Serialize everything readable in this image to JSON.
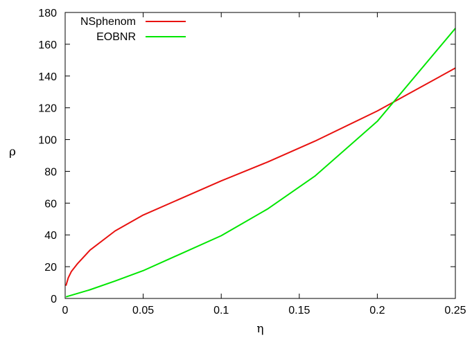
{
  "chart_data": {
    "type": "line",
    "xlabel": "η",
    "ylabel": "ρ",
    "xlim": [
      0,
      0.25
    ],
    "ylim": [
      0,
      180
    ],
    "xticks": [
      "0",
      "0.05",
      "0.1",
      "0.15",
      "0.2",
      "0.25"
    ],
    "yticks": [
      "0",
      "20",
      "40",
      "60",
      "80",
      "100",
      "120",
      "140",
      "160",
      "180"
    ],
    "grid": false,
    "legend_position": "top-left",
    "series": [
      {
        "name": "NSphenom",
        "color": "#e8110f",
        "x": [
          0.0005,
          0.002,
          0.004,
          0.008,
          0.016,
          0.032,
          0.05,
          0.1,
          0.13,
          0.16,
          0.2,
          0.25
        ],
        "y": [
          8,
          13,
          17,
          22,
          30.5,
          42.5,
          52.5,
          74,
          86,
          99,
          118,
          145
        ]
      },
      {
        "name": "EOBNR",
        "color": "#00e600",
        "x": [
          0.0005,
          0.016,
          0.032,
          0.05,
          0.1,
          0.13,
          0.16,
          0.2,
          0.25
        ],
        "y": [
          1,
          5.5,
          11,
          17.5,
          39.5,
          56.5,
          77,
          111.5,
          170
        ]
      }
    ]
  }
}
